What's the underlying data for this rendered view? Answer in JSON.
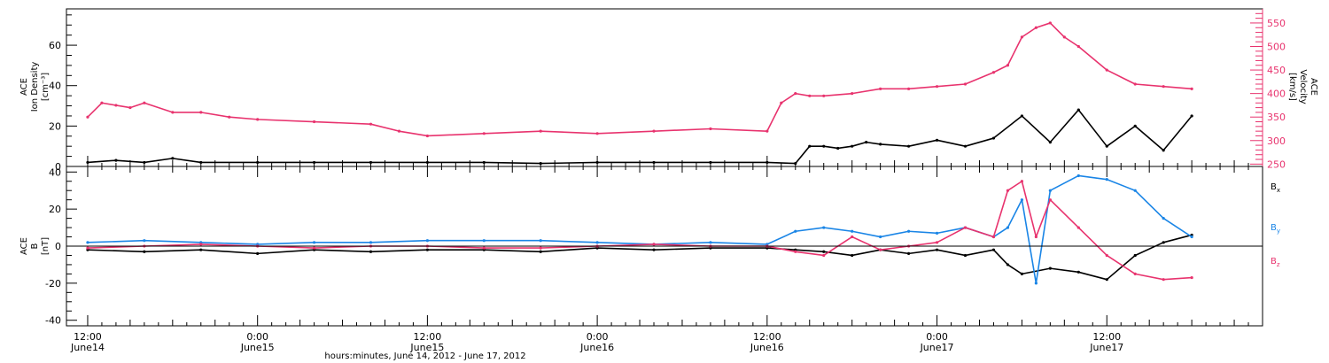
{
  "chart_data": [
    {
      "type": "scatter",
      "panel": "top",
      "ylabel_left_lines": [
        "ACE",
        "Ion Density",
        "[cm⁻³]"
      ],
      "ylabel_right_lines": [
        "ACE",
        "Velocity",
        "[km/s]"
      ],
      "ylim_left": [
        0,
        78
      ],
      "ylim_right": [
        245,
        580
      ],
      "yticks_left": [
        0,
        20,
        40,
        60
      ],
      "yticks_right": [
        250,
        300,
        350,
        400,
        450,
        500,
        550
      ],
      "right_axis_color": "#e8336e",
      "series": [
        {
          "axis": "left",
          "color": "#000000",
          "x": [
            0,
            2,
            4,
            6,
            8,
            12,
            16,
            20,
            24,
            28,
            32,
            36,
            40,
            44,
            48,
            50,
            51,
            52,
            53,
            54,
            55,
            56,
            58,
            60,
            62,
            64,
            66,
            68,
            70,
            72,
            74,
            76,
            78
          ],
          "y": [
            2,
            3,
            2,
            4,
            2,
            2,
            2,
            2,
            2,
            2,
            1.5,
            2,
            2,
            2,
            2,
            1.5,
            10,
            10,
            9,
            10,
            12,
            11,
            10,
            13,
            10,
            14,
            25,
            12,
            28,
            10,
            20,
            8,
            25
          ]
        },
        {
          "axis": "right",
          "color": "#e8336e",
          "x": [
            0,
            1,
            2,
            3,
            4,
            6,
            8,
            10,
            12,
            16,
            20,
            22,
            24,
            28,
            32,
            36,
            40,
            44,
            48,
            49,
            50,
            51,
            52,
            54,
            56,
            58,
            60,
            62,
            64,
            65,
            66,
            67,
            68,
            69,
            70,
            72,
            74,
            76,
            78
          ],
          "y": [
            350,
            380,
            375,
            370,
            380,
            360,
            360,
            350,
            345,
            340,
            335,
            320,
            310,
            315,
            320,
            315,
            320,
            325,
            320,
            380,
            400,
            395,
            395,
            400,
            410,
            410,
            415,
            420,
            445,
            460,
            520,
            540,
            550,
            520,
            500,
            450,
            420,
            415,
            410
          ]
        }
      ]
    },
    {
      "type": "scatter",
      "panel": "bottom",
      "ylabel_lines": [
        "ACE",
        "B",
        "[nT]"
      ],
      "ylim": [
        -43,
        43
      ],
      "yticks": [
        -40,
        -20,
        0,
        20,
        40
      ],
      "zero_line": true,
      "legend_position": "right",
      "series": [
        {
          "name": "Bx",
          "color": "#000000",
          "x": [
            0,
            4,
            8,
            12,
            16,
            20,
            24,
            28,
            32,
            36,
            40,
            44,
            48,
            50,
            52,
            54,
            56,
            58,
            60,
            62,
            64,
            65,
            66,
            68,
            70,
            72,
            74,
            76,
            78
          ],
          "y": [
            -2,
            -3,
            -2,
            -4,
            -2,
            -3,
            -2,
            -2,
            -3,
            -1,
            -2,
            -1,
            -1,
            -2,
            -3,
            -5,
            -2,
            -4,
            -2,
            -5,
            -2,
            -10,
            -15,
            -12,
            -14,
            -18,
            -5,
            2,
            6
          ]
        },
        {
          "name": "By",
          "color": "#1a85e6",
          "x": [
            0,
            4,
            8,
            12,
            16,
            20,
            24,
            28,
            32,
            36,
            40,
            44,
            48,
            50,
            52,
            54,
            56,
            58,
            60,
            62,
            64,
            65,
            66,
            67,
            68,
            70,
            72,
            74,
            76,
            78
          ],
          "y": [
            2,
            3,
            2,
            1,
            2,
            2,
            3,
            3,
            3,
            2,
            1,
            2,
            1,
            8,
            10,
            8,
            5,
            8,
            7,
            10,
            5,
            10,
            25,
            -20,
            30,
            38,
            36,
            30,
            15,
            5
          ]
        },
        {
          "name": "Bz",
          "color": "#e8336e",
          "x": [
            0,
            4,
            8,
            12,
            16,
            20,
            24,
            28,
            32,
            36,
            40,
            44,
            48,
            50,
            52,
            54,
            56,
            58,
            60,
            62,
            64,
            65,
            66,
            67,
            68,
            70,
            72,
            74,
            76,
            78
          ],
          "y": [
            -1,
            0,
            1,
            0,
            -1,
            0,
            0,
            -1,
            -1,
            0,
            1,
            0,
            0,
            -3,
            -5,
            5,
            -2,
            0,
            2,
            10,
            5,
            30,
            35,
            5,
            25,
            10,
            -5,
            -15,
            -18,
            -17
          ]
        }
      ],
      "legend_labels": [
        {
          "base": "B",
          "sub": "x"
        },
        {
          "base": "B",
          "sub": "y"
        },
        {
          "base": "B",
          "sub": "z"
        }
      ]
    }
  ],
  "x_axis": {
    "range_hours": [
      -1.5,
      83
    ],
    "major_ticks": [
      {
        "h": 0,
        "time": "12:00",
        "date": "June14"
      },
      {
        "h": 12,
        "time": "0:00",
        "date": "June15"
      },
      {
        "h": 24,
        "time": "12:00",
        "date": "June15"
      },
      {
        "h": 36,
        "time": "0:00",
        "date": "June16"
      },
      {
        "h": 48,
        "time": "12:00",
        "date": "June16"
      },
      {
        "h": 60,
        "time": "0:00",
        "date": "June17"
      },
      {
        "h": 72,
        "time": "12:00",
        "date": "June17"
      }
    ],
    "xlabel": "hours:minutes, June 14, 2012 - June 17, 2012"
  }
}
